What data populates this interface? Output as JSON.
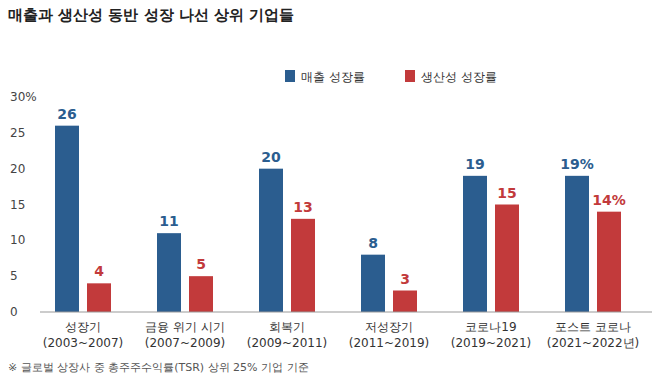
{
  "chart_data": {
    "type": "bar",
    "title": "매출과 생산성 동반 성장 나선 상위 기업들",
    "annotations": [
      "※ 글로벌 상장사 중 총주주수익률(TSR) 상위 25% 기업 기준"
    ],
    "categories": [
      "성장기\n(2003~2007)",
      "금융 위기 시기\n(2007~2009)",
      "회복기\n(2009~2011)",
      "저성장기\n(2011~2019)",
      "코로나19\n(2019~2021)",
      "포스트 코로나\n(2021~2022년)"
    ],
    "series": [
      {
        "name": "매출 성장률",
        "color": "#2b5d8f",
        "values": [
          26,
          11,
          20,
          8,
          19,
          19
        ],
        "value_labels": [
          "26",
          "11",
          "20",
          "8",
          "19",
          "19%"
        ]
      },
      {
        "name": "생산성 성장률",
        "color": "#c23a3b",
        "values": [
          4,
          5,
          13,
          3,
          15,
          14
        ],
        "value_labels": [
          "4",
          "5",
          "13",
          "3",
          "15",
          "14%"
        ]
      }
    ],
    "ylim": [
      0,
      30
    ],
    "yticks": [
      0,
      5,
      10,
      15,
      20,
      25,
      {
        "value": 30,
        "label": "30%"
      }
    ],
    "grid": false,
    "legend": "top",
    "data_labels": true
  }
}
